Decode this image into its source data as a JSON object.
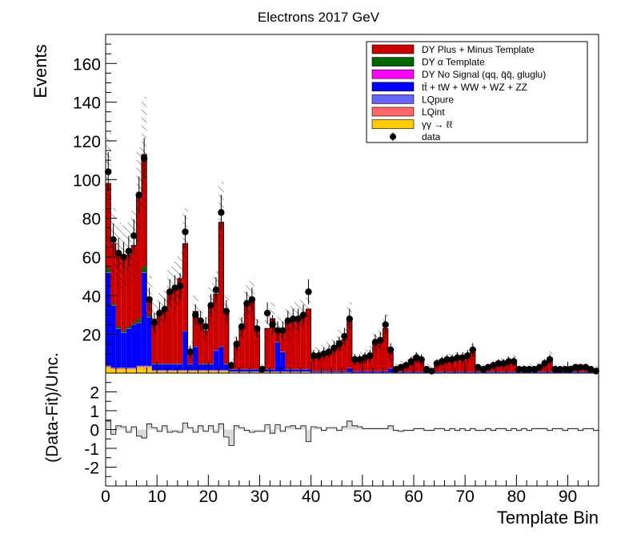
{
  "chart_data": [
    {
      "type": "bar",
      "stacked": true,
      "title": "Electrons 2017  GeV",
      "ylabel": "Events",
      "xlim": [
        0,
        96
      ],
      "ylim": [
        0,
        175
      ],
      "x_ticks": [
        0,
        10,
        20,
        30,
        40,
        50,
        60,
        70,
        80,
        90
      ],
      "y_ticks": [
        20,
        40,
        60,
        80,
        100,
        120,
        140,
        160
      ],
      "legend_position": "top-right",
      "uncertainty_band": "hatched",
      "x": [
        0,
        1,
        2,
        3,
        4,
        5,
        6,
        7,
        8,
        9,
        10,
        11,
        12,
        13,
        14,
        15,
        16,
        17,
        18,
        19,
        20,
        21,
        22,
        23,
        24,
        25,
        26,
        27,
        28,
        29,
        30,
        31,
        32,
        33,
        34,
        35,
        36,
        37,
        38,
        39,
        40,
        41,
        42,
        43,
        44,
        45,
        46,
        47,
        48,
        49,
        50,
        51,
        52,
        53,
        54,
        55,
        56,
        57,
        58,
        59,
        60,
        61,
        62,
        63,
        64,
        65,
        66,
        67,
        68,
        69,
        70,
        71,
        72,
        73,
        74,
        75,
        76,
        77,
        78,
        79,
        80,
        81,
        82,
        83,
        84,
        85,
        86,
        87,
        88,
        89,
        90,
        91,
        92,
        93,
        94,
        95
      ],
      "series": [
        {
          "name": "γγ → ℓℓ",
          "color": "#ffcc00",
          "values": [
            3,
            2,
            2,
            2,
            2,
            2,
            3,
            3,
            3,
            1,
            1,
            1,
            1,
            1,
            1,
            1,
            1,
            1,
            1,
            1,
            1,
            1,
            1,
            1,
            0.5,
            0.5,
            0.5,
            0.5,
            0.5,
            0.5,
            0.5,
            0.5,
            0.5,
            0.5,
            0.5,
            0.5,
            0.5,
            0.5,
            0.5,
            0.5,
            0.3,
            0.3,
            0.3,
            0.3,
            0.3,
            0.3,
            0.3,
            0.3,
            0.2,
            0.2,
            0.2,
            0.2,
            0.2,
            0.2,
            0.2,
            0.2,
            0.1,
            0.1,
            0.1,
            0.1,
            0.1,
            0.1,
            0.1,
            0.1,
            0.1,
            0.1,
            0.1,
            0.1,
            0.1,
            0.1,
            0.1,
            0.1,
            0.1,
            0.1,
            0.1,
            0.1,
            0.1,
            0.1,
            0.1,
            0.1,
            0.1,
            0.1,
            0.1,
            0.1,
            0.1,
            0.1,
            0.1,
            0.1,
            0.1,
            0.1,
            0.1,
            0.1,
            0.1,
            0.1,
            0.1,
            0.1
          ]
        },
        {
          "name": "LQint",
          "color": "#ff6666",
          "values": [
            0.5,
            0.5,
            0.5,
            0.5,
            0.5,
            0.5,
            0.5,
            0.5,
            0.5,
            0.3,
            0.3,
            0.3,
            0.3,
            0.3,
            0.3,
            0.3,
            0.3,
            0.3,
            0.3,
            0.3,
            0.3,
            0.3,
            0.3,
            0.3,
            0.2,
            0.2,
            0.2,
            0.2,
            0.2,
            0.2,
            0.2,
            0.2,
            0.2,
            0.2,
            0.2,
            0.2,
            0.2,
            0.2,
            0.2,
            0.2,
            0.1,
            0.1,
            0.1,
            0.1,
            0.1,
            0.1,
            0.1,
            0.1,
            0.1,
            0.1,
            0.1,
            0.1,
            0.1,
            0.1,
            0.1,
            0.1,
            0.1,
            0.1,
            0.1,
            0.1,
            0.1,
            0.1,
            0.1,
            0.1,
            0.1,
            0.1,
            0.1,
            0.1,
            0.1,
            0.1,
            0.1,
            0.1,
            0.1,
            0.1,
            0.1,
            0.1,
            0.1,
            0.1,
            0.1,
            0.1,
            0.1,
            0.1,
            0.1,
            0.1,
            0.1,
            0.1,
            0.1,
            0.1,
            0.1,
            0.1,
            0.1,
            0.1,
            0.1,
            0.1,
            0.1,
            0.1
          ]
        },
        {
          "name": "LQpure",
          "color": "#6666ff",
          "values": [
            0.3,
            0.3,
            0.3,
            0.3,
            0.3,
            0.3,
            0.3,
            0.3,
            0.3,
            0.2,
            0.2,
            0.2,
            0.2,
            0.2,
            0.2,
            0.2,
            0.2,
            0.2,
            0.2,
            0.2,
            0.2,
            0.2,
            0.2,
            0.2,
            0.1,
            0.1,
            0.1,
            0.1,
            0.1,
            0.1,
            0.1,
            0.1,
            0.1,
            0.1,
            0.1,
            0.1,
            0.1,
            0.1,
            0.1,
            0.1,
            0.1,
            0.1,
            0.1,
            0.1,
            0.1,
            0.1,
            0.1,
            0.1,
            0.1,
            0.1,
            0.1,
            0.1,
            0.1,
            0.1,
            0.1,
            0.1,
            0.1,
            0.1,
            0.1,
            0.1,
            0.1,
            0.1,
            0.1,
            0.1,
            0.1,
            0.1,
            0.1,
            0.1,
            0.1,
            0.1,
            0.1,
            0.1,
            0.1,
            0.1,
            0.1,
            0.1,
            0.1,
            0.1,
            0.1,
            0.1,
            0.1,
            0.1,
            0.1,
            0.1,
            0.1,
            0.1,
            0.1,
            0.1,
            0.1,
            0.1,
            0.1,
            0.1,
            0.1,
            0.1,
            0.1,
            0.1
          ]
        },
        {
          "name": "tt̄ + tW + WW + WZ + ZZ",
          "color": "#0000ff",
          "values": [
            48,
            32,
            20,
            18,
            20,
            22,
            22,
            48,
            25,
            3,
            3,
            3,
            3,
            3,
            3,
            20,
            3,
            12,
            3,
            3,
            3,
            10,
            12,
            3,
            1,
            1,
            1,
            1,
            1,
            1,
            1,
            1,
            1,
            15,
            10,
            1,
            1,
            1,
            1,
            1,
            0.5,
            0.5,
            0.5,
            0.5,
            0.5,
            0.5,
            0.5,
            2,
            0.5,
            0.5,
            0.5,
            0.5,
            0.5,
            0.5,
            0.5,
            2,
            0.3,
            0.3,
            0.3,
            0.3,
            0.3,
            0.3,
            0.3,
            0.3,
            0.3,
            0.3,
            0.3,
            0.3,
            0.3,
            0.3,
            0.3,
            0.3,
            0.3,
            0.3,
            0.3,
            0.3,
            0.3,
            0.3,
            0.3,
            0.3,
            0.3,
            0.3,
            0.3,
            0.3,
            0.3,
            0.3,
            0.3,
            0.3,
            0.3,
            0.3,
            0.3,
            0.3,
            0.3,
            0.3,
            0.3,
            0.3
          ]
        },
        {
          "name": "DY No Signal (qq, q̄q̄, gluglu)",
          "color": "#ff00ff",
          "values": [
            0.2,
            0.2,
            0.2,
            0.2,
            0.2,
            0.2,
            0.2,
            0.2,
            0.2,
            0.1,
            0.1,
            0.1,
            0.1,
            0.1,
            0.1,
            0.1,
            0.1,
            0.1,
            0.1,
            0.1,
            0.1,
            0.1,
            0.1,
            0.1,
            0.1,
            0.1,
            0.1,
            0.1,
            0.1,
            0.1,
            0.1,
            0.1,
            0.1,
            0.1,
            0.1,
            0.1,
            0.1,
            0.1,
            0.1,
            0.1,
            0.1,
            0.1,
            0.1,
            0.1,
            0.1,
            0.1,
            0.1,
            0.1,
            0.1,
            0.1,
            0.1,
            0.1,
            0.1,
            0.1,
            0.1,
            0.1,
            0.1,
            0.1,
            0.1,
            0.1,
            0.1,
            0.1,
            0.1,
            0.1,
            0.1,
            0.1,
            0.1,
            0.1,
            0.1,
            0.1,
            0.1,
            0.1,
            0.1,
            0.1,
            0.1,
            0.1,
            0.1,
            0.1,
            0.1,
            0.1,
            0.1,
            0.1,
            0.1,
            0.1,
            0.1,
            0.1,
            0.1,
            0.1,
            0.1,
            0.1,
            0.1,
            0.1,
            0.1,
            0.1,
            0.1,
            0.1
          ]
        },
        {
          "name": "DY α Template",
          "color": "#006600",
          "values": [
            2,
            1,
            1,
            1,
            1,
            1,
            2,
            3,
            1,
            0.3,
            0.3,
            0.3,
            0.3,
            0.3,
            0.3,
            0.3,
            0.3,
            0.3,
            0.3,
            0.3,
            0.3,
            0.3,
            0.3,
            0.3,
            0.2,
            0.2,
            0.2,
            0.2,
            0.2,
            0.2,
            0.2,
            0.2,
            0.2,
            0.2,
            0.2,
            0.2,
            0.2,
            0.2,
            0.2,
            0.2,
            0.1,
            0.1,
            0.1,
            0.1,
            0.1,
            0.1,
            0.1,
            0.1,
            0.1,
            0.1,
            0.1,
            0.1,
            0.1,
            0.1,
            0.1,
            0.1,
            0.1,
            0.1,
            0.1,
            0.1,
            0.1,
            0.1,
            0.1,
            0.1,
            0.1,
            0.1,
            0.1,
            0.1,
            0.1,
            0.1,
            0.1,
            0.1,
            0.1,
            0.1,
            0.1,
            0.1,
            0.1,
            0.1,
            0.1,
            0.1,
            0.1,
            0.1,
            0.1,
            0.1,
            0.1,
            0.1,
            0.1,
            0.1,
            0.1,
            0.1,
            0.1,
            0.1,
            0.1,
            0.1,
            0.1,
            0.1
          ]
        },
        {
          "name": "DY Plus + Minus Template",
          "color": "#cc0000",
          "values": [
            44,
            31,
            37,
            38,
            37,
            40,
            64,
            58,
            9,
            23,
            27,
            28,
            38,
            40,
            44,
            45,
            7,
            18,
            21,
            17,
            31,
            29,
            64,
            27,
            2.5,
            12,
            21,
            33,
            36,
            20,
            0.5,
            21,
            26,
            6,
            10,
            24,
            26,
            27,
            28,
            31,
            8.5,
            8.5,
            9.5,
            10.5,
            11.5,
            15.5,
            16,
            25.5,
            6,
            6.5,
            7.5,
            9,
            14,
            16,
            22,
            8,
            2,
            3,
            3.5,
            5,
            6.5,
            5.5,
            2,
            1.5,
            4,
            5,
            6,
            6,
            6.5,
            6.5,
            7.5,
            10,
            2,
            1.5,
            2,
            3,
            4,
            4.5,
            5,
            5.5,
            1.5,
            1.5,
            2,
            2,
            2.5,
            4.5,
            7,
            1.5,
            1.5,
            1.5,
            1.5,
            2,
            2,
            2,
            1.5,
            1
          ]
        }
      ],
      "data_series": {
        "name": "data",
        "color": "#000000",
        "values": [
          104,
          69,
          62,
          60,
          63,
          71,
          92,
          111,
          38,
          26,
          31,
          33,
          42,
          44,
          45,
          73,
          11,
          30,
          27,
          24,
          35,
          43,
          83,
          32,
          4,
          15,
          24,
          36,
          38,
          23,
          2,
          31,
          25,
          22,
          22,
          27,
          28,
          28,
          30,
          42,
          9,
          9,
          10,
          11,
          13,
          15,
          19,
          28,
          7,
          7,
          8,
          9,
          16,
          17,
          25,
          12,
          2,
          3,
          4,
          6,
          8,
          7,
          2,
          1,
          5,
          6,
          7,
          7,
          8,
          8,
          9,
          12,
          3,
          2,
          3,
          4,
          5,
          5,
          6,
          6,
          2,
          2,
          2,
          2,
          3,
          5,
          7,
          2,
          2,
          2,
          2,
          3,
          3,
          3,
          2,
          1
        ]
      }
    },
    {
      "type": "bar",
      "ylabel": "(Data-Fit)/Unc.",
      "xlabel": "Template Bin",
      "xlim": [
        0,
        96
      ],
      "ylim": [
        -3,
        3
      ],
      "x_ticks": [
        0,
        10,
        20,
        30,
        40,
        50,
        60,
        70,
        80,
        90
      ],
      "y_ticks": [
        -2,
        -1,
        0,
        1,
        2
      ],
      "fill_color": "#d9d9d9",
      "x": [
        0,
        1,
        2,
        3,
        4,
        5,
        6,
        7,
        8,
        9,
        10,
        11,
        12,
        13,
        14,
        15,
        16,
        17,
        18,
        19,
        20,
        21,
        22,
        23,
        24,
        25,
        26,
        27,
        28,
        29,
        30,
        31,
        32,
        33,
        34,
        35,
        36,
        37,
        38,
        39,
        40,
        41,
        42,
        43,
        44,
        45,
        46,
        47,
        48,
        49,
        50,
        51,
        52,
        53,
        54,
        55,
        56,
        57,
        58,
        59,
        60,
        61,
        62,
        63,
        64,
        65,
        66,
        67,
        68,
        69,
        70,
        71,
        72,
        73,
        74,
        75,
        76,
        77,
        78,
        79,
        80,
        81,
        82,
        83,
        84,
        85,
        86,
        87,
        88,
        89,
        90,
        91,
        92,
        93,
        94,
        95
      ],
      "values": [
        0.45,
        -0.25,
        0.2,
        0.15,
        -0.15,
        0.15,
        -0.35,
        -0.45,
        0.3,
        0.1,
        -0.1,
        0.2,
        -0.15,
        -0.1,
        -0.15,
        0.35,
        0.1,
        -0.15,
        0.2,
        -0.1,
        0.2,
        -0.15,
        0.3,
        -0.4,
        -0.85,
        0.2,
        0.1,
        -0.05,
        -0.15,
        -0.1,
        -0.1,
        0.25,
        -0.2,
        0.25,
        -0.1,
        0.15,
        0.2,
        0.05,
        0.2,
        -0.65,
        0.15,
        0.1,
        -0.05,
        0.1,
        0.1,
        -0.05,
        0.15,
        0.45,
        0.2,
        0.15,
        0.05,
        0.05,
        0.05,
        0.05,
        0.05,
        0.2,
        -0.05,
        -0.1,
        -0.05,
        -0.05,
        0.05,
        0.05,
        -0.05,
        -0.05,
        0.05,
        0.05,
        -0.05,
        0.05,
        -0.05,
        0.05,
        -0.05,
        0.05,
        -0.05,
        -0.05,
        0.05,
        -0.05,
        0.05,
        0.05,
        -0.05,
        0.05,
        -0.05,
        0.05,
        -0.05,
        0.05,
        0.05,
        0.05,
        -0.05,
        0.05,
        0.05,
        -0.05,
        0.05,
        0.05,
        -0.05,
        0.05,
        0.05,
        -0.05
      ]
    }
  ]
}
